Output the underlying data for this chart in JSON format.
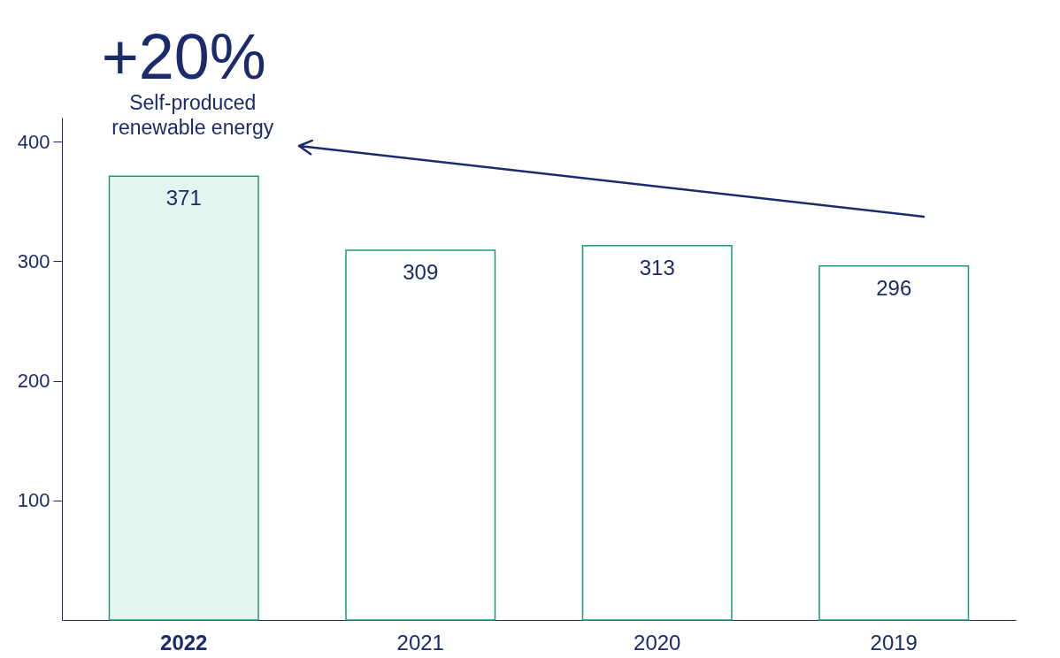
{
  "chart_data": {
    "type": "bar",
    "categories": [
      "2022",
      "2021",
      "2020",
      "2019"
    ],
    "values": [
      371,
      309,
      313,
      296
    ],
    "colors": [
      "#e4f4f0",
      "#ffffff",
      "#ffffff",
      "#ffffff"
    ],
    "ylim": [
      0,
      420
    ],
    "yticks": [
      100,
      200,
      300,
      400
    ],
    "grid": false,
    "data_labels": true,
    "annotations": [
      "+20%",
      "Self-produced renewable energy"
    ]
  }
}
